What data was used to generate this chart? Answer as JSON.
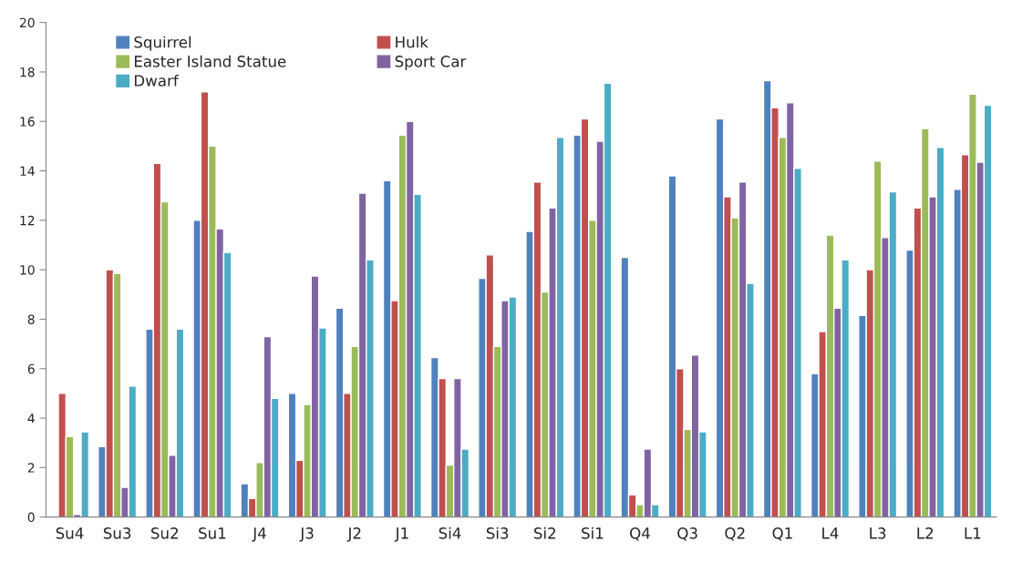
{
  "chart_data": {
    "type": "bar",
    "categories": [
      "Su4",
      "Su3",
      "Su2",
      "Su1",
      "J4",
      "J3",
      "J2",
      "J1",
      "Si4",
      "Si3",
      "Si2",
      "Si1",
      "Q4",
      "Q3",
      "Q2",
      "Q1",
      "L4",
      "L3",
      "L2",
      "L1"
    ],
    "series": [
      {
        "name": "Squirrel",
        "color": "#4f81bd",
        "values": [
          null,
          2.85,
          7.6,
          12.0,
          1.35,
          5.0,
          8.45,
          13.6,
          6.45,
          9.65,
          11.55,
          15.45,
          10.5,
          13.8,
          16.1,
          17.65,
          5.8,
          8.15,
          10.8,
          13.25
        ]
      },
      {
        "name": "Hulk",
        "color": "#c0504d",
        "values": [
          5.0,
          10.0,
          14.3,
          17.2,
          0.75,
          2.3,
          5.0,
          8.75,
          5.6,
          10.6,
          13.55,
          16.1,
          0.9,
          6.0,
          12.95,
          16.55,
          7.5,
          10.0,
          12.5,
          14.65
        ]
      },
      {
        "name": "Easter Island Statue",
        "color": "#9bbb59",
        "values": [
          3.25,
          9.85,
          12.75,
          15.0,
          2.2,
          4.55,
          6.9,
          15.45,
          2.1,
          6.9,
          9.1,
          12.0,
          0.5,
          3.55,
          12.1,
          15.35,
          11.4,
          14.4,
          15.7,
          17.1
        ]
      },
      {
        "name": "Sport Car",
        "color": "#8064a2",
        "values": [
          0.1,
          1.2,
          2.5,
          11.65,
          7.3,
          9.75,
          13.1,
          16.0,
          5.6,
          8.75,
          12.5,
          15.2,
          2.75,
          6.55,
          13.55,
          16.75,
          8.45,
          11.3,
          12.95,
          14.35
        ]
      },
      {
        "name": "Dwarf",
        "color": "#4bacc6",
        "values": [
          3.45,
          5.3,
          7.6,
          10.7,
          4.8,
          7.65,
          10.4,
          13.05,
          2.75,
          8.9,
          15.35,
          17.55,
          0.5,
          3.45,
          9.45,
          14.1,
          10.4,
          13.15,
          14.95,
          16.65
        ]
      }
    ],
    "ylim": [
      0,
      20
    ],
    "yticks": [
      0,
      2,
      4,
      6,
      8,
      10,
      12,
      14,
      16,
      18,
      20
    ],
    "grid": false,
    "legend": "top left"
  }
}
